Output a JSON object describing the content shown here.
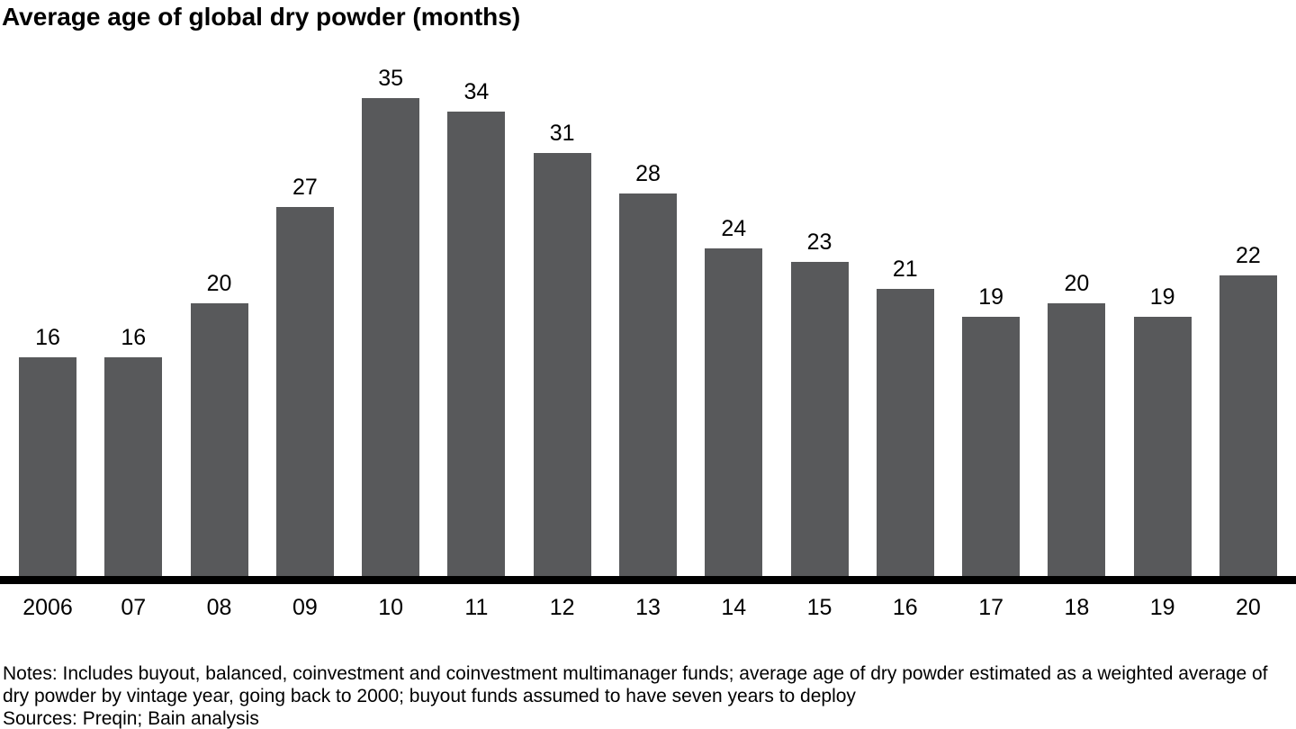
{
  "title": "Average age of global dry powder (months)",
  "chart_data": {
    "type": "bar",
    "title": "Average age of global dry powder (months)",
    "categories": [
      "2006",
      "07",
      "08",
      "09",
      "10",
      "11",
      "12",
      "13",
      "14",
      "15",
      "16",
      "17",
      "18",
      "19",
      "20"
    ],
    "values": [
      16,
      16,
      20,
      27,
      35,
      34,
      31,
      28,
      24,
      23,
      21,
      19,
      20,
      19,
      22
    ],
    "xlabel": "",
    "ylabel": "",
    "ylim": [
      0,
      36
    ],
    "grid": false,
    "legend": false,
    "value_labels_shown": true,
    "bar_color": "#58595b",
    "axis_line_color": "#000000",
    "value_label_color": "#000000"
  },
  "footer": {
    "notes": "Notes: Includes buyout, balanced, coinvestment and coinvestment multimanager funds; average age of dry powder estimated as a weighted average of dry powder by vintage year, going back to 2000; buyout funds assumed to have seven years to deploy",
    "sources": "Sources: Preqin; Bain analysis"
  }
}
